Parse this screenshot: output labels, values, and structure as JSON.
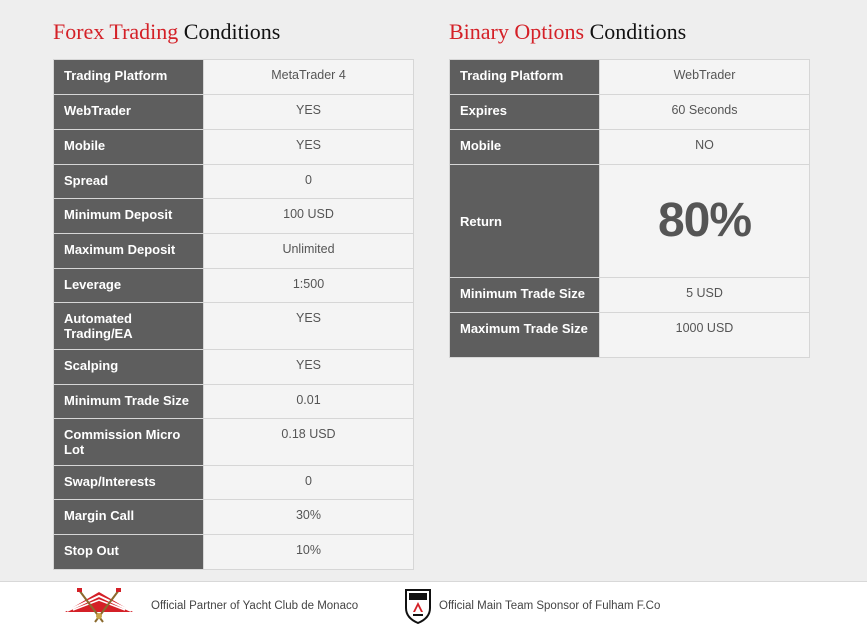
{
  "forex": {
    "title_highlight": "Forex Trading",
    "title_rest": "Conditions",
    "rows": [
      {
        "label": "Trading Platform",
        "value": "MetaTrader 4"
      },
      {
        "label": "WebTrader",
        "value": "YES"
      },
      {
        "label": "Mobile",
        "value": "YES"
      },
      {
        "label": "Spread",
        "value": "0"
      },
      {
        "label": "Minimum Deposit",
        "value": "100 USD"
      },
      {
        "label": "Maximum Deposit",
        "value": "Unlimited"
      },
      {
        "label": "Leverage",
        "value": "1:500"
      },
      {
        "label": "Automated Trading/EA",
        "value": "YES"
      },
      {
        "label": "Scalping",
        "value": "YES"
      },
      {
        "label": "Minimum Trade Size",
        "value": "0.01"
      },
      {
        "label": "Commission Micro Lot",
        "value": "0.18 USD"
      },
      {
        "label": "Swap/Interests",
        "value": "0"
      },
      {
        "label": "Margin Call",
        "value": "30%"
      },
      {
        "label": "Stop Out",
        "value": "10%"
      }
    ]
  },
  "binary": {
    "title_highlight": "Binary Options",
    "title_rest": "Conditions",
    "rows": [
      {
        "label": "Trading Platform",
        "value": "WebTrader"
      },
      {
        "label": "Expires",
        "value": "60 Seconds"
      },
      {
        "label": "Mobile",
        "value": "NO"
      },
      {
        "label": "Return",
        "value": "80%"
      },
      {
        "label": "Minimum Trade Size",
        "value": "5 USD"
      },
      {
        "label": "Maximum Trade Size",
        "value": "1000 USD"
      }
    ]
  },
  "footer": {
    "yacht_text": "Official Partner of Yacht Club de Monaco",
    "yacht_icon": "yacht-club-logo-icon",
    "fulham_text": "Official Main Team Sponsor of Fulham F.Co",
    "fulham_icon": "fulham-crest-icon"
  },
  "colors": {
    "accent_red": "#d42027",
    "label_bg": "#5e5e5e",
    "value_bg": "#f4f4f4",
    "page_bg": "#eeeeee"
  }
}
